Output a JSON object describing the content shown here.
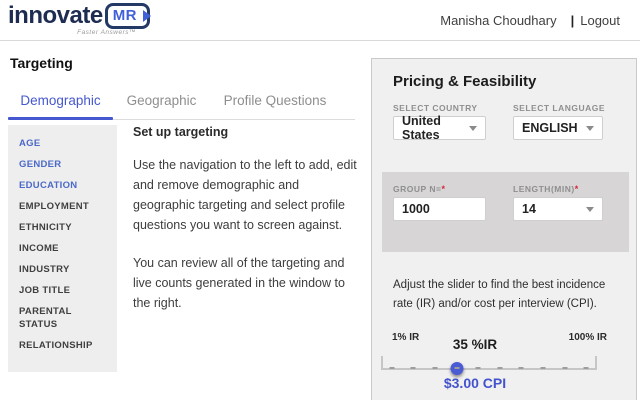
{
  "header": {
    "logo": {
      "brand": "innovate",
      "badge": "MR",
      "tagline": "Faster Answers™"
    },
    "user_name": "Manisha Choudhary",
    "separator": "|",
    "logout_label": "Logout"
  },
  "page": {
    "title": "Targeting",
    "tabs": [
      {
        "label": "Demographic",
        "active": true
      },
      {
        "label": "Geographic",
        "active": false
      },
      {
        "label": "Profile Questions",
        "active": false
      }
    ],
    "sidebar": {
      "items": [
        {
          "label": "AGE",
          "highlighted": true
        },
        {
          "label": "GENDER",
          "highlighted": true
        },
        {
          "label": "EDUCATION",
          "highlighted": true
        },
        {
          "label": "EMPLOYMENT",
          "highlighted": false
        },
        {
          "label": "ETHNICITY",
          "highlighted": false
        },
        {
          "label": "INCOME",
          "highlighted": false
        },
        {
          "label": "INDUSTRY",
          "highlighted": false
        },
        {
          "label": "JOB TITLE",
          "highlighted": false
        },
        {
          "label": "PARENTAL STATUS",
          "highlighted": false
        },
        {
          "label": "RELATIONSHIP",
          "highlighted": false
        }
      ]
    },
    "main": {
      "heading": "Set up targeting",
      "paragraph1": "Use the navigation to the left to add, edit and remove demographic and geographic targeting and select profile questions you want to screen against.",
      "paragraph2": "You can review all of the targeting and live counts generated in the window to the right."
    }
  },
  "pricing_panel": {
    "title": "Pricing & Feasibility",
    "country": {
      "label": "SELECT COUNTRY",
      "value": "United States"
    },
    "language": {
      "label": "SELECT LANGUAGE",
      "value": "ENGLISH"
    },
    "group_n": {
      "label": "GROUP N=",
      "required_mark": "*",
      "value": "1000"
    },
    "length_min": {
      "label": "LENGTH(MIN)",
      "required_mark": "*",
      "value": "14"
    },
    "slider_help": "Adjust the slider to find the best incidence rate (IR) and/or cost per interview (CPI).",
    "slider": {
      "min_label": "1% IR",
      "current_label": "35 %IR",
      "max_label": "100% IR",
      "value_percent": 35,
      "tick_count": 10
    },
    "cpi_label": "$3.00 CPI"
  },
  "colors": {
    "accent_blue": "#4a5bd4",
    "active_tab_blue": "#4558cf",
    "sidebar_highlight_blue": "#4a69c8",
    "brand_navy": "#1d2c50",
    "brand_blue": "#4161d8",
    "required_red": "#d7263d",
    "panel_bg": "#f1f0f0",
    "gray_box_bg": "#d7d5d5"
  }
}
